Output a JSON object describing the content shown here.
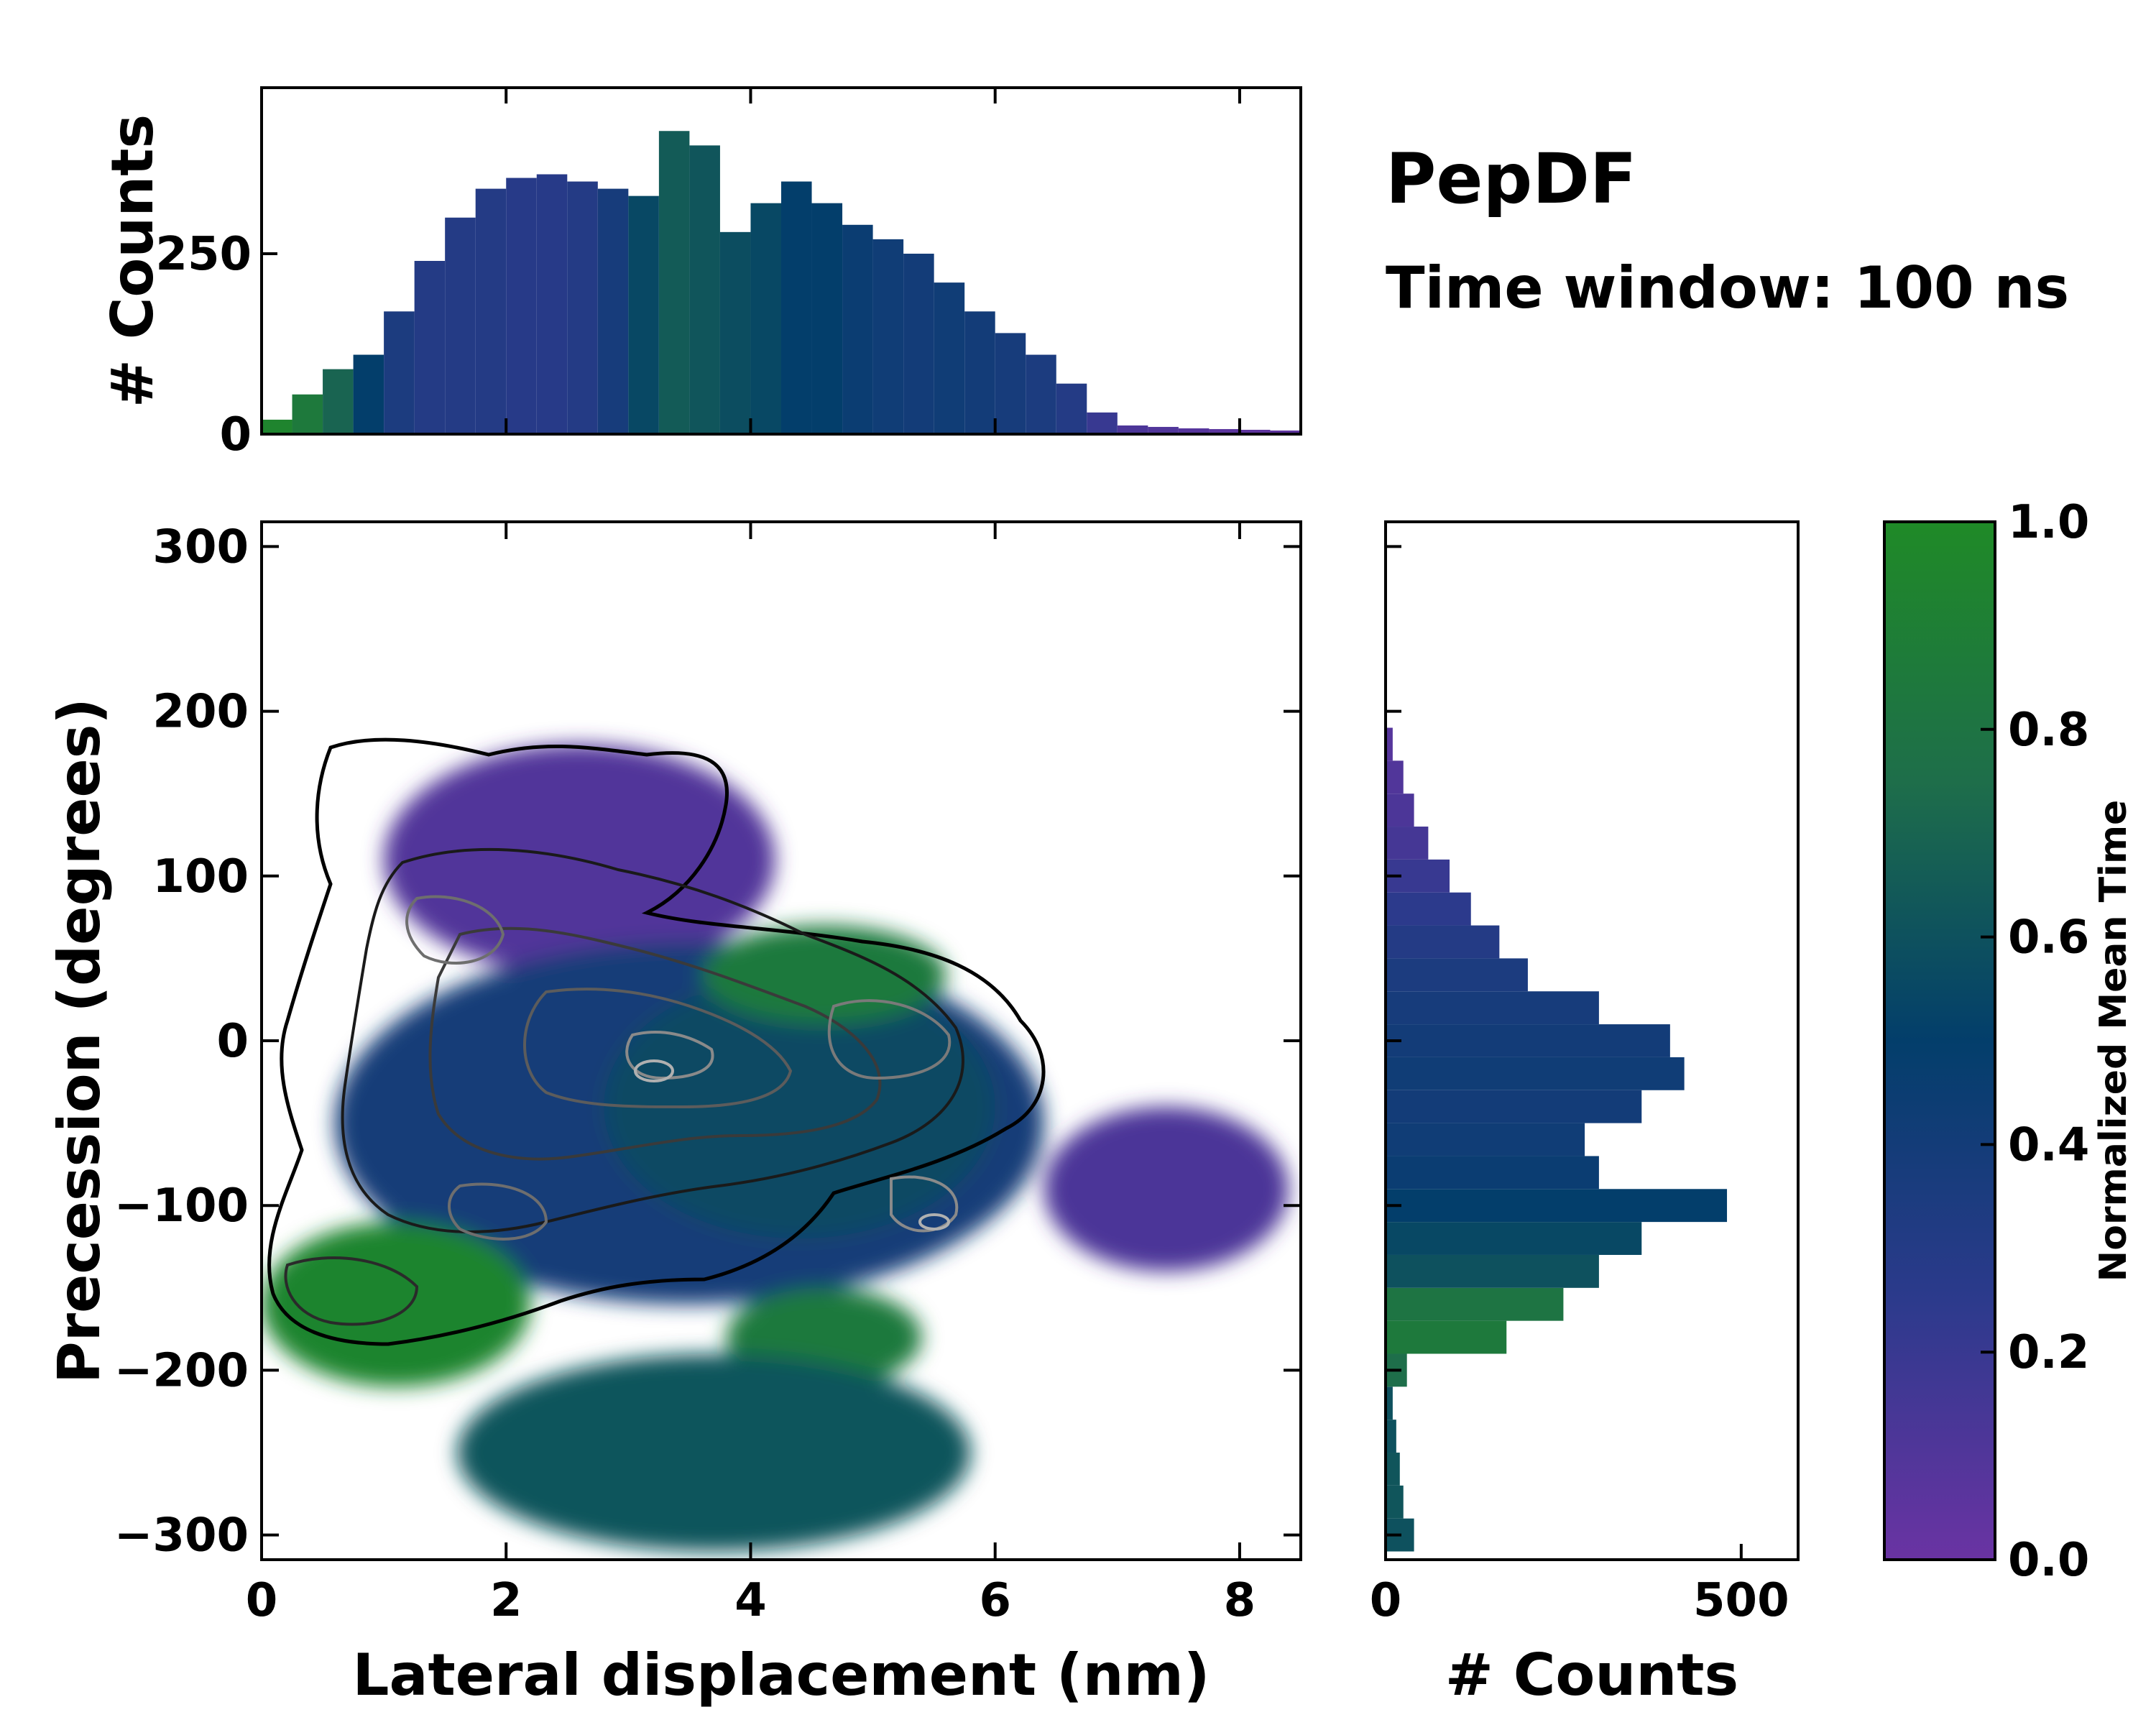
{
  "chart_data": {
    "type": "heatmap",
    "title": "PepDF",
    "subtitle": "Time window: 100 ns",
    "xlabel": "Lateral displacement (nm)",
    "ylabel": "Precession (degrees)",
    "xlim": [
      0,
      8.5
    ],
    "ylim": [
      -315,
      315
    ],
    "xticks": [
      "0",
      "2",
      "4",
      "6",
      "8"
    ],
    "xtick_values": [
      0,
      2,
      4,
      6,
      8
    ],
    "yticks": [
      "300",
      "200",
      "100",
      "0",
      "−100",
      "−200",
      "−300"
    ],
    "ytick_values": [
      300,
      200,
      100,
      0,
      -100,
      -200,
      -300
    ],
    "colorbar": {
      "label": "Normalized Mean Time",
      "range": [
        0.0,
        1.0
      ],
      "ticks": [
        "0.0",
        "0.2",
        "0.4",
        "0.6",
        "0.8",
        "1.0"
      ],
      "tick_values": [
        0,
        0.2,
        0.4,
        0.6,
        0.8,
        1.0
      ],
      "colors": [
        "#6a33a3",
        "#2c3a8c",
        "#033e6b",
        "#1e6e4a",
        "#1f8a27"
      ]
    },
    "top_histogram": {
      "ylabel": "# Counts",
      "yticks": [
        "0",
        "250"
      ],
      "ytick_values": [
        0,
        250
      ],
      "ylim": [
        0,
        480
      ],
      "x": [
        0.0,
        0.25,
        0.5,
        0.75,
        1.0,
        1.25,
        1.5,
        1.75,
        2.0,
        2.25,
        2.5,
        2.75,
        3.0,
        3.25,
        3.5,
        3.75,
        4.0,
        4.25,
        4.5,
        4.75,
        5.0,
        5.25,
        5.5,
        5.75,
        6.0,
        6.25,
        6.5,
        6.75,
        7.0,
        7.25,
        7.5,
        7.75,
        8.0,
        8.25,
        8.5
      ],
      "values": [
        20,
        55,
        90,
        110,
        170,
        240,
        300,
        340,
        355,
        360,
        350,
        340,
        330,
        420,
        400,
        280,
        320,
        350,
        320,
        290,
        270,
        250,
        210,
        170,
        140,
        110,
        70,
        30,
        12,
        10,
        8,
        7,
        6,
        5,
        3
      ],
      "mean_time": [
        0.95,
        0.85,
        0.7,
        0.5,
        0.35,
        0.3,
        0.3,
        0.3,
        0.28,
        0.28,
        0.3,
        0.38,
        0.55,
        0.65,
        0.62,
        0.58,
        0.55,
        0.5,
        0.5,
        0.45,
        0.42,
        0.4,
        0.42,
        0.4,
        0.38,
        0.35,
        0.3,
        0.2,
        0.12,
        0.1,
        0.08,
        0.06,
        0.05,
        0.05,
        0.05
      ]
    },
    "right_histogram": {
      "xlabel": "# Counts",
      "xticks": [
        "0",
        "500"
      ],
      "xtick_values": [
        0,
        500
      ],
      "xlim": [
        0,
        580
      ],
      "y": [
        -300,
        -280,
        -260,
        -240,
        -220,
        -200,
        -180,
        -160,
        -140,
        -120,
        -100,
        -80,
        -60,
        -40,
        -20,
        0,
        20,
        40,
        60,
        80,
        100,
        120,
        140,
        160,
        180
      ],
      "values": [
        40,
        25,
        20,
        15,
        10,
        30,
        170,
        250,
        300,
        360,
        480,
        300,
        280,
        360,
        420,
        400,
        300,
        200,
        160,
        120,
        90,
        60,
        40,
        25,
        10
      ],
      "mean_time": [
        0.6,
        0.62,
        0.62,
        0.6,
        0.6,
        0.75,
        0.85,
        0.8,
        0.6,
        0.55,
        0.5,
        0.45,
        0.42,
        0.4,
        0.42,
        0.4,
        0.38,
        0.35,
        0.3,
        0.25,
        0.2,
        0.15,
        0.12,
        0.1,
        0.08
      ]
    },
    "regions": [
      {
        "name": "upper-left-purple",
        "mean_time": 0.1,
        "x_range": [
          1.0,
          4.2
        ],
        "y_range": [
          40,
          180
        ]
      },
      {
        "name": "central-blue",
        "mean_time": 0.4,
        "x_range": [
          0.6,
          6.4
        ],
        "y_range": [
          -160,
          60
        ]
      },
      {
        "name": "central-teal",
        "mean_time": 0.55,
        "x_range": [
          2.8,
          6.0
        ],
        "y_range": [
          -120,
          40
        ]
      },
      {
        "name": "upper-right-green",
        "mean_time": 0.85,
        "x_range": [
          3.6,
          5.6
        ],
        "y_range": [
          10,
          70
        ]
      },
      {
        "name": "right-purple",
        "mean_time": 0.12,
        "x_range": [
          6.4,
          8.4
        ],
        "y_range": [
          -140,
          -40
        ]
      },
      {
        "name": "lower-left-green",
        "mean_time": 0.95,
        "x_range": [
          0.0,
          2.2
        ],
        "y_range": [
          -210,
          -110
        ]
      },
      {
        "name": "lower-green",
        "mean_time": 0.85,
        "x_range": [
          3.8,
          5.4
        ],
        "y_range": [
          -210,
          -150
        ]
      },
      {
        "name": "bottom-teal",
        "mean_time": 0.62,
        "x_range": [
          1.6,
          5.8
        ],
        "y_range": [
          -310,
          -190
        ]
      }
    ]
  }
}
